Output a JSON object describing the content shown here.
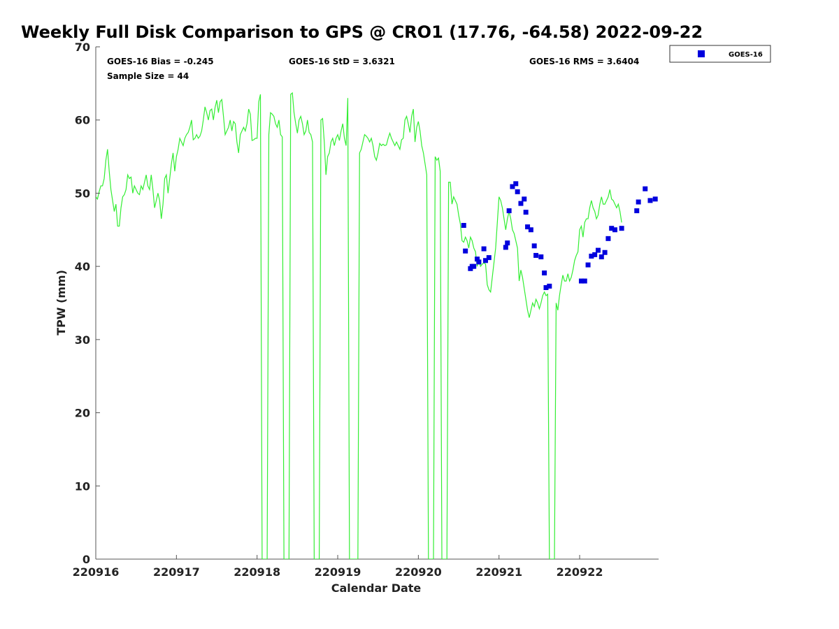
{
  "chart_data": {
    "type": "scatter",
    "title": "Weekly Full Disk Comparison to GPS @ CRO1 (17.76, -64.58) 2022-09-22",
    "xlabel": "Calendar Date",
    "ylabel": "TPW (mm)",
    "ylim": [
      0,
      70
    ],
    "xlim": [
      "2022-09-16 00:00",
      "2022-09-22 23:30"
    ],
    "x_tick_labels": [
      "220916",
      "220917",
      "220918",
      "220919",
      "220920",
      "220921",
      "220922"
    ],
    "y_ticks": [
      0,
      10,
      20,
      30,
      40,
      50,
      60,
      70
    ],
    "grid": false,
    "legend_position": "top-right, outside plot",
    "stats": {
      "bias": "GOES-16 Bias = -0.245",
      "std": "GOES-16 StD = 3.6321",
      "rms": "GOES-16 RMS = 3.6404",
      "sample": "Sample Size = 44"
    },
    "gps_series": {
      "color": "#33ee33",
      "x_start": "2022-09-16 00:00",
      "step_minutes": 30,
      "values": [
        49.5,
        49.2,
        50.2,
        51,
        51,
        52,
        54.5,
        56,
        53,
        50.5,
        49,
        47.5,
        48.5,
        45.5,
        45.5,
        48,
        49.5,
        49.8,
        50.5,
        52.5,
        52,
        52.2,
        50,
        51,
        50.5,
        50,
        49.8,
        51,
        50.5,
        51.5,
        52.5,
        51,
        50.5,
        52.5,
        50.5,
        48,
        49,
        50,
        49,
        46.5,
        48.5,
        52,
        52.5,
        50,
        52,
        54,
        55.5,
        53,
        55,
        56,
        57.5,
        57,
        56.5,
        57.5,
        58,
        58.3,
        59,
        60,
        57.3,
        57.5,
        58,
        57.5,
        57.8,
        58.5,
        60,
        61.8,
        61,
        60,
        61.3,
        61.5,
        60,
        61.7,
        62.7,
        61,
        62.5,
        62.8,
        60.5,
        58,
        58.5,
        59,
        60,
        58.5,
        59.8,
        59.5,
        57,
        55.5,
        58,
        58.5,
        59,
        58.5,
        59.5,
        61.5,
        60.8,
        57.2,
        57.3,
        57.5,
        57.5,
        62.5,
        63.5,
        0,
        0,
        0,
        0,
        58,
        61,
        60.8,
        60.5,
        59.5,
        59,
        60,
        58,
        57.7,
        0,
        0,
        0,
        0,
        63.5,
        63.7,
        61,
        59.5,
        58.2,
        60,
        60.5,
        59.5,
        58,
        58.5,
        60,
        58.3,
        58,
        57,
        0,
        0,
        0,
        0,
        60,
        60.2,
        57,
        52.5,
        55,
        55.5,
        57,
        57.5,
        56.5,
        57.5,
        58,
        57.2,
        58.5,
        59.5,
        57.5,
        56.5,
        63,
        0,
        0,
        0,
        0,
        0,
        0,
        55.5,
        56,
        57,
        58,
        57.8,
        57.5,
        57,
        57.5,
        56.5,
        55,
        54.5,
        55.5,
        56.8,
        56.5,
        56.7,
        56.5,
        56.6,
        57.5,
        58.2,
        57.5,
        57,
        56.5,
        57,
        56.5,
        56,
        57.3,
        57.5,
        60,
        60.5,
        59.5,
        58.3,
        60.5,
        61.5,
        57,
        59,
        59.8,
        58.5,
        56.5,
        55.5,
        54,
        52.5,
        0,
        0,
        0,
        0,
        55,
        54.5,
        54.8,
        53,
        0,
        0,
        0,
        0,
        51.5,
        51.5,
        48.5,
        49.5,
        49,
        48.5,
        47,
        45.8,
        43.5,
        43.3,
        44,
        43.5,
        42.5,
        44,
        43.5,
        42.5,
        42,
        40,
        41,
        40,
        40.3,
        40.5,
        40.3,
        37.5,
        36.8,
        36.5,
        38.5,
        40.5,
        42.5,
        46,
        49.5,
        49,
        48,
        46.5,
        45,
        46.5,
        47.5,
        46.5,
        45,
        44.5,
        43.5,
        42.5,
        38,
        39.5,
        38.5,
        37,
        35.5,
        34,
        33,
        34,
        35,
        34.5,
        35.5,
        35,
        34.2,
        35,
        36,
        36.5,
        36,
        36.2,
        0,
        0,
        0,
        0,
        35,
        34,
        36,
        37.5,
        38.8,
        38,
        38,
        39,
        38,
        38.5,
        39.5,
        40.8,
        41.5,
        42,
        45,
        45.5,
        44,
        46,
        46.5,
        46.5,
        48,
        49,
        48,
        47.5,
        46.5,
        47,
        48.5,
        49.5,
        48.5,
        48.5,
        49,
        49.5,
        50.5,
        49.2,
        49,
        48.5,
        48,
        48.5,
        47.5,
        46
      ]
    },
    "series": [
      {
        "name": "GOES-16",
        "color": "#0000dd",
        "x": [
          "2022-09-20 13:30",
          "2022-09-20 14:00",
          "2022-09-20 15:30",
          "2022-09-20 16:00",
          "2022-09-20 16:30",
          "2022-09-20 17:30",
          "2022-09-20 18:00",
          "2022-09-20 19:30",
          "2022-09-20 20:00",
          "2022-09-20 21:00",
          "2022-09-21 02:00",
          "2022-09-21 02:30",
          "2022-09-21 03:00",
          "2022-09-21 04:00",
          "2022-09-21 05:00",
          "2022-09-21 05:30",
          "2022-09-21 06:30",
          "2022-09-21 07:30",
          "2022-09-21 08:00",
          "2022-09-21 08:30",
          "2022-09-21 09:30",
          "2022-09-21 10:30",
          "2022-09-21 11:00",
          "2022-09-21 12:30",
          "2022-09-21 13:30",
          "2022-09-21 14:00",
          "2022-09-21 15:00",
          "2022-09-22 00:30",
          "2022-09-22 01:30",
          "2022-09-22 02:30",
          "2022-09-22 03:30",
          "2022-09-22 04:30",
          "2022-09-22 05:30",
          "2022-09-22 06:30",
          "2022-09-22 07:30",
          "2022-09-22 08:30",
          "2022-09-22 09:30",
          "2022-09-22 10:30",
          "2022-09-22 12:30",
          "2022-09-22 17:00",
          "2022-09-22 17:30",
          "2022-09-22 19:30",
          "2022-09-22 21:00",
          "2022-09-22 22:30"
        ],
        "values": [
          45.6,
          42.1,
          39.7,
          40.0,
          40.0,
          41.0,
          40.6,
          42.4,
          40.8,
          41.2,
          42.6,
          43.2,
          47.6,
          50.9,
          51.3,
          50.2,
          48.6,
          49.2,
          47.4,
          45.4,
          45.0,
          42.8,
          41.5,
          41.3,
          39.1,
          37.1,
          37.3,
          38.0,
          38.0,
          40.2,
          41.4,
          41.6,
          42.2,
          41.3,
          41.9,
          43.8,
          45.2,
          45.0,
          45.2,
          47.6,
          48.8,
          50.6,
          49.0,
          49.2
        ]
      }
    ]
  }
}
